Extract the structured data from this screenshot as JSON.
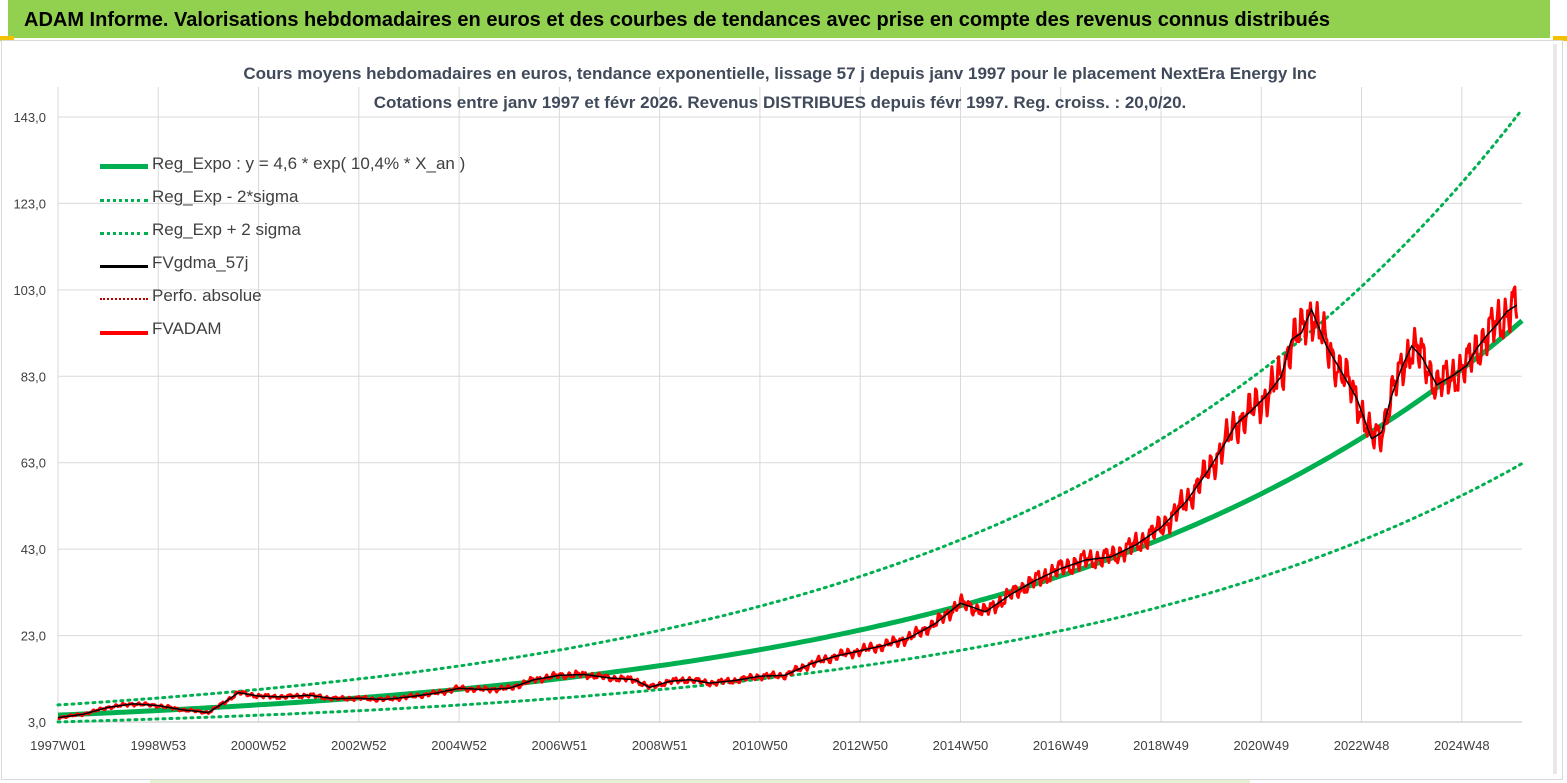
{
  "header": {
    "title": "ADAM Informe. Valorisations hebdomadaires en euros et des courbes de tendances avec prise en compte des revenus connus distribués"
  },
  "colors": {
    "header_bg": "#92d050",
    "trend": "#00b050",
    "fvgdma": "#000000",
    "perfo": "#c00000",
    "fvadam": "#ff0000"
  },
  "chart_data": {
    "type": "line",
    "title": "Cours moyens hebdomadaires en euros, tendance exponentielle, lissage 57 j depuis janv 1997 pour le placement NextEra Energy Inc",
    "subtitle": "Cotations entre janv 1997 et févr 2026. Revenus DISTRIBUES depuis févr 1997. Reg. croiss. : 20,0/20.",
    "xlabel": "",
    "ylabel": "",
    "ylim": [
      3.0,
      143.0
    ],
    "yticks": [
      "3,0",
      "23,0",
      "43,0",
      "63,0",
      "83,0",
      "103,0",
      "123,0",
      "143,0"
    ],
    "xticks": [
      "1997W01",
      "1998W53",
      "2000W52",
      "2002W52",
      "2004W52",
      "2006W51",
      "2008W51",
      "2010W50",
      "2012W50",
      "2014W50",
      "2016W49",
      "2018W49",
      "2020W49",
      "2022W48",
      "2024W48"
    ],
    "grid": true,
    "legend_position": "top-left",
    "trend_formula": {
      "a": 4.6,
      "r": 0.104,
      "start_year": 1997.0,
      "end_year": 2026.2
    },
    "sigma_factor_low": 0.655,
    "sigma_factor_high": 1.51,
    "series": [
      {
        "name": "Reg_Expo : y = 4,6 * exp( 10,4% *  X_an )",
        "style": "trend"
      },
      {
        "name": "Reg_Exp - 2*sigma",
        "style": "trend-low"
      },
      {
        "name": "Reg_Exp + 2 sigma",
        "style": "trend-high"
      },
      {
        "name": "FVgdma_57j",
        "style": "smooth"
      },
      {
        "name": "Perfo. absolue",
        "style": "perfo"
      },
      {
        "name": "FVADAM",
        "style": "price",
        "x": [
          1997.0,
          1997.5,
          1998.0,
          1998.5,
          1999.0,
          1999.5,
          2000.0,
          2000.3,
          2000.6,
          2001.0,
          2001.5,
          2002.0,
          2002.5,
          2003.0,
          2003.5,
          2004.0,
          2004.5,
          2005.0,
          2005.5,
          2006.0,
          2006.5,
          2007.0,
          2007.5,
          2008.0,
          2008.5,
          2008.8,
          2009.2,
          2009.6,
          2010.0,
          2010.5,
          2011.0,
          2011.5,
          2012.0,
          2012.5,
          2013.0,
          2013.5,
          2014.0,
          2014.5,
          2015.0,
          2015.5,
          2016.0,
          2016.5,
          2017.0,
          2017.5,
          2018.0,
          2018.5,
          2019.0,
          2019.5,
          2019.9,
          2020.2,
          2020.5,
          2020.8,
          2021.1,
          2021.4,
          2021.6,
          2021.8,
          2022.0,
          2022.3,
          2022.6,
          2022.9,
          2023.2,
          2023.4,
          2023.6,
          2023.8,
          2024.0,
          2024.2,
          2024.5,
          2024.8,
          2025.1,
          2025.3,
          2025.5,
          2025.7,
          2025.9,
          2026.1
        ],
        "values": [
          4.0,
          4.8,
          6.4,
          7.2,
          6.8,
          5.8,
          5.2,
          7.4,
          9.8,
          9.0,
          8.8,
          9.2,
          8.4,
          8.5,
          8.2,
          8.8,
          9.6,
          10.8,
          10.5,
          10.8,
          12.8,
          13.8,
          14.0,
          13.2,
          12.8,
          11.0,
          12.4,
          12.8,
          12.0,
          12.6,
          13.6,
          13.8,
          16.4,
          18.2,
          19.5,
          20.8,
          22.6,
          25.8,
          30.5,
          28.5,
          32.5,
          35.8,
          38.5,
          40.5,
          41.2,
          44.0,
          48.0,
          54.0,
          60.5,
          66.0,
          72.0,
          75.0,
          78.5,
          83.0,
          91.5,
          93.0,
          98.5,
          90.0,
          84.0,
          78.0,
          68.5,
          70.0,
          78.5,
          85.0,
          90.0,
          87.5,
          81.0,
          83.0,
          85.5,
          89.5,
          92.5,
          95.0,
          98.0,
          99.5
        ]
      }
    ]
  }
}
